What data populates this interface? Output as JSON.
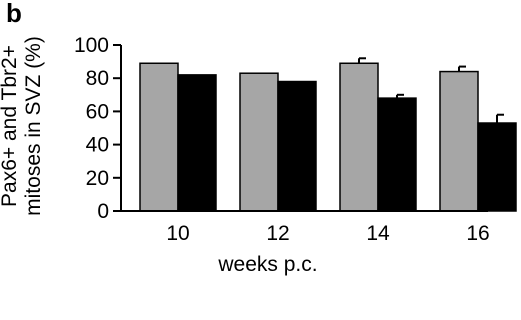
{
  "panel_label": "b",
  "chart_data": {
    "type": "bar",
    "categories": [
      "10",
      "12",
      "14",
      "16"
    ],
    "series": [
      {
        "values": [
          89,
          83,
          89,
          84
        ],
        "errors": [
          0,
          0,
          3,
          3
        ],
        "color": "#a6a6a6"
      },
      {
        "values": [
          82,
          78,
          68,
          53
        ],
        "errors": [
          0,
          0,
          2,
          5
        ],
        "color": "#000000"
      }
    ],
    "title": "",
    "xlabel": "weeks p.c.",
    "ylabel_line1": "Pax6+ and Tbr2+",
    "ylabel_line2": "mitoses in SVZ (%)",
    "ylim": [
      0,
      100
    ],
    "yticks": [
      0,
      20,
      40,
      60,
      80,
      100
    ],
    "grid": false,
    "legend": "none"
  }
}
